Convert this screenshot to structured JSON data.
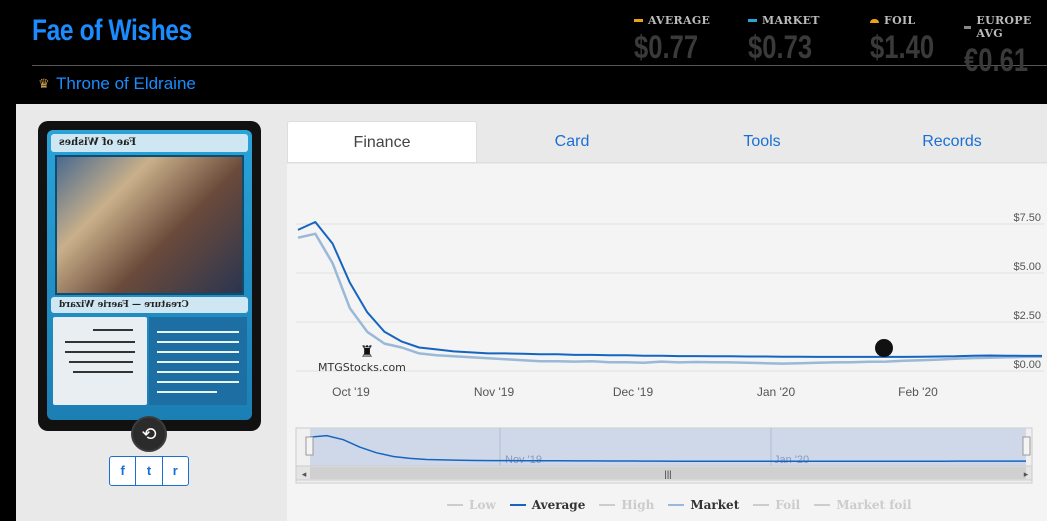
{
  "header": {
    "title": "Fae of Wishes",
    "set_name": "Throne of Eldraine"
  },
  "prices": [
    {
      "label": "AVERAGE",
      "value": "$0.77",
      "color": "#e8a317"
    },
    {
      "label": "MARKET",
      "value": "$0.73",
      "color": "#2aa3d8"
    },
    {
      "label": "FOIL",
      "value": "$1.40",
      "color": "#e8a317"
    },
    {
      "label": "EUROPE AVG",
      "value": "€0.61",
      "color": "#888888"
    }
  ],
  "card": {
    "name": "Fae of Wishes",
    "type_line": "Creature — Faerie Wizard"
  },
  "tabs": [
    "Finance",
    "Card",
    "Tools",
    "Records"
  ],
  "legend": [
    {
      "label": "Low",
      "color": "#cccccc",
      "active": false
    },
    {
      "label": "Average",
      "color": "#1565c0",
      "active": true
    },
    {
      "label": "High",
      "color": "#cccccc",
      "active": false
    },
    {
      "label": "Market",
      "color": "#9ab8d8",
      "active": true
    },
    {
      "label": "Foil",
      "color": "#cccccc",
      "active": false
    },
    {
      "label": "Market foil",
      "color": "#cccccc",
      "active": false
    }
  ],
  "chart_data": {
    "type": "line",
    "watermark": "MTGStocks.com",
    "x_ticks": [
      "Oct '19",
      "Nov '19",
      "Dec '19",
      "Jan '20",
      "Feb '20"
    ],
    "nav_ticks": [
      "Nov '19",
      "Jan '20"
    ],
    "y_ticks": [
      "$7.50",
      "$5.00",
      "$2.50",
      "$0.00"
    ],
    "ylim": [
      0,
      7.5
    ],
    "series": [
      {
        "name": "Average",
        "color": "#1565c0",
        "values": [
          7.2,
          7.6,
          6.5,
          4.5,
          3.0,
          2.0,
          1.5,
          1.2,
          1.1,
          1.0,
          0.95,
          0.9,
          0.9,
          0.88,
          0.85,
          0.85,
          0.82,
          0.82,
          0.8,
          0.8,
          0.78,
          0.78,
          0.76,
          0.76,
          0.75,
          0.75,
          0.74,
          0.74,
          0.73,
          0.73,
          0.72,
          0.72,
          0.72,
          0.72,
          0.72,
          0.72,
          0.73,
          0.74,
          0.75,
          0.78,
          0.79,
          0.78,
          0.77,
          0.77
        ]
      },
      {
        "name": "Market",
        "color": "#9ab8d8",
        "values": [
          6.8,
          7.0,
          5.5,
          3.2,
          2.0,
          1.4,
          1.2,
          0.9,
          0.8,
          0.75,
          0.7,
          0.65,
          0.6,
          0.55,
          0.5,
          0.5,
          0.48,
          0.5,
          0.45,
          0.45,
          0.42,
          0.48,
          0.44,
          0.46,
          0.45,
          0.44,
          0.42,
          0.4,
          0.38,
          0.4,
          0.42,
          0.44,
          0.45,
          0.47,
          0.48,
          0.52,
          0.55,
          0.58,
          0.62,
          0.66,
          0.68,
          0.7,
          0.72,
          0.73
        ]
      }
    ]
  }
}
